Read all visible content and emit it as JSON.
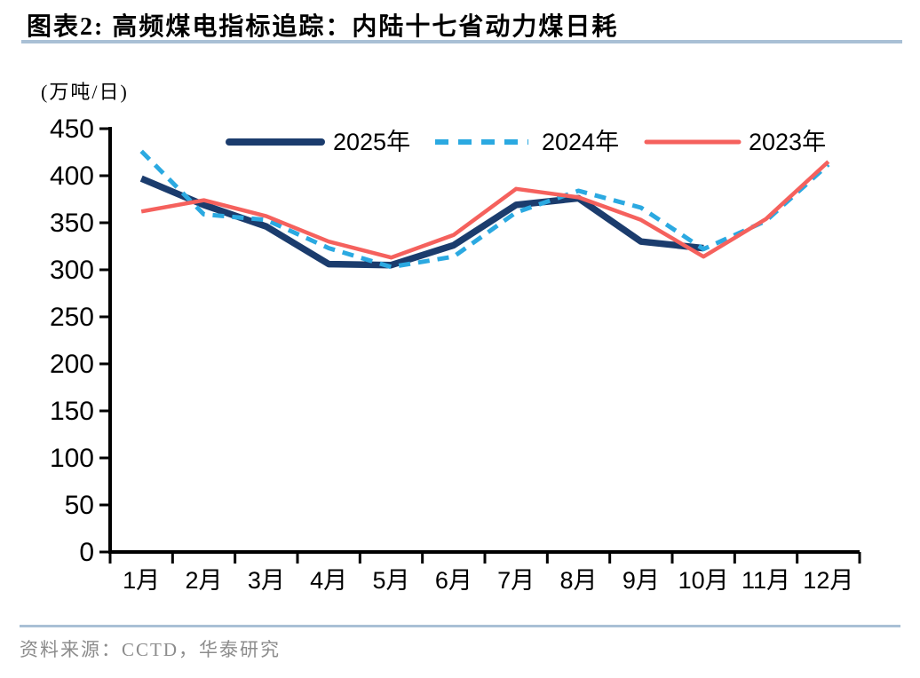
{
  "header": {
    "title": "图表2:  高频煤电指标追踪：内陆十七省动力煤日耗"
  },
  "chart": {
    "unit_label": "(万吨/日)"
  },
  "footer": {
    "source": "资料来源：CCTD，华泰研究"
  },
  "colors": {
    "navy": "#1B3C6D",
    "sky": "#2BA9E1",
    "red": "#F5615D",
    "axis": "#000000",
    "divider": "#A9C0D5",
    "source_text": "#8C8C8C"
  },
  "chart_data": {
    "type": "line",
    "title": "高频煤电指标追踪：内陆十七省动力煤日耗",
    "ylabel": "万吨/日",
    "xlabel": "",
    "grid": false,
    "legend_position": "top",
    "ylim": [
      0,
      450
    ],
    "ytick_step": 50,
    "categories": [
      "1月",
      "2月",
      "3月",
      "4月",
      "5月",
      "6月",
      "7月",
      "8月",
      "9月",
      "10月",
      "11月",
      "12月"
    ],
    "series": [
      {
        "name": "2025年",
        "color": "#1B3C6D",
        "style": "solid",
        "line_width": 7.5,
        "values": [
          397,
          369,
          346,
          306,
          305,
          326,
          369,
          376,
          330,
          323,
          null,
          null
        ]
      },
      {
        "name": "2024年",
        "color": "#2BA9E1",
        "style": "dashed",
        "line_width": 5,
        "values": [
          426,
          359,
          353,
          323,
          303,
          314,
          361,
          384,
          366,
          322,
          352,
          412
        ]
      },
      {
        "name": "2023年",
        "color": "#F5615D",
        "style": "solid",
        "line_width": 4.5,
        "values": [
          362,
          374,
          357,
          330,
          313,
          337,
          386,
          377,
          353,
          314,
          354,
          415
        ]
      }
    ]
  }
}
